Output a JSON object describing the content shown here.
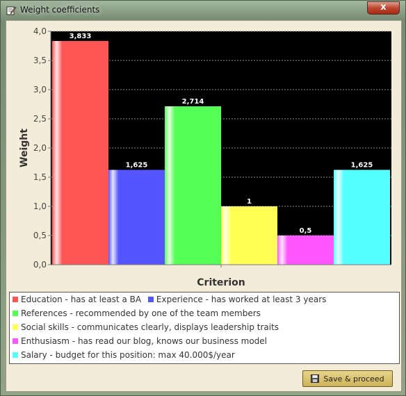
{
  "window": {
    "title": "Weight coefficients",
    "close_glyph": "x"
  },
  "chart_data": {
    "type": "bar",
    "xlabel": "Criterion",
    "ylabel": "Weight",
    "ylim": [
      0,
      4.0
    ],
    "yticks": [
      "0,0",
      "0,5",
      "1,0",
      "1,5",
      "2,0",
      "2,5",
      "3,0",
      "3,5",
      "4,0"
    ],
    "grid": true,
    "background": "#000000",
    "series": [
      {
        "name": "Education - has at least a BA",
        "value": 3.833,
        "label": "3,833",
        "color": "#ff5555"
      },
      {
        "name": "Experience - has worked at least 3 years",
        "value": 1.625,
        "label": "1,625",
        "color": "#5555ff"
      },
      {
        "name": "References - recommended by one of the team members",
        "value": 2.714,
        "label": "2,714",
        "color": "#55ff55"
      },
      {
        "name": "Social skills - communicates clearly, displays leadership traits",
        "value": 1,
        "label": "1",
        "color": "#ffff55"
      },
      {
        "name": "Enthusiasm - has read our blog, knows our business model",
        "value": 0.5,
        "label": "0,5",
        "color": "#ff55ff"
      },
      {
        "name": "Salary - budget for this position: max 40.000$/year",
        "value": 1.625,
        "label": "1,625",
        "color": "#55ffff"
      }
    ]
  },
  "legend": {
    "items": [
      {
        "label": "Education - has at least a BA",
        "color": "#ff5555"
      },
      {
        "label": "Experience - has worked at least 3 years",
        "color": "#5555ff"
      },
      {
        "label": "References - recommended by one of the team members",
        "color": "#55ff55"
      },
      {
        "label": "Social skills - communicates clearly, displays leadership traits",
        "color": "#ffff55"
      },
      {
        "label": "Enthusiasm - has read our blog, knows our business model",
        "color": "#ff55ff"
      },
      {
        "label": "Salary - budget for this position: max 40.000$/year",
        "color": "#55ffff"
      }
    ]
  },
  "footer": {
    "save_label": "Save & proceed",
    "save_icon": "floppy-disk-icon"
  }
}
